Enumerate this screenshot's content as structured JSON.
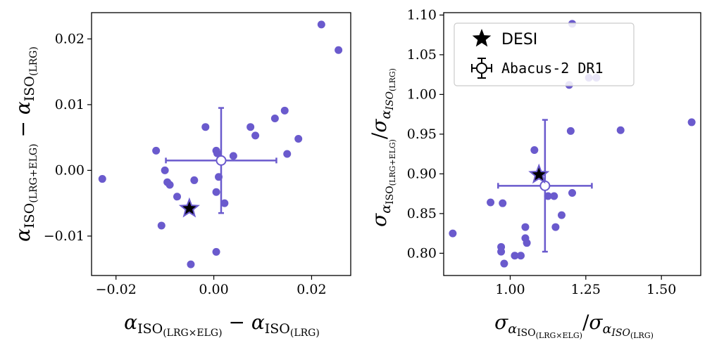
{
  "colors": {
    "points": "#6a5acd",
    "star": "#000000",
    "axis": "#000000",
    "legend_border": "#cccccc"
  },
  "chart_data": [
    {
      "type": "scatter",
      "xlabel": {
        "main": "α",
        "sub": "ISO",
        "sub2": "(LRG×ELG)",
        "minus": " − ",
        "main2": "α",
        "sub_b": "ISO",
        "sub2_b": "(LRG)"
      },
      "ylabel": {
        "main": "α",
        "sub": "ISO",
        "sub2": "(LRG+ELG)",
        "minus": " − ",
        "main2": "α",
        "sub_b": "ISO",
        "sub2_b": "(LRG)"
      },
      "xlim": [
        -0.025,
        0.028
      ],
      "ylim": [
        -0.016,
        0.024
      ],
      "xticks": [
        -0.02,
        0.0,
        0.02
      ],
      "xtick_labels": [
        "−0.02",
        "0.00",
        "0.02"
      ],
      "yticks": [
        -0.01,
        0.0,
        0.01,
        0.02
      ],
      "ytick_labels": [
        "−0.01",
        "0.00",
        "0.01",
        "0.02"
      ],
      "points": [
        {
          "x": 0.022,
          "y": 0.0222
        },
        {
          "x": 0.0255,
          "y": 0.0183
        },
        {
          "x": 0.0145,
          "y": 0.0091
        },
        {
          "x": 0.0125,
          "y": 0.0079
        },
        {
          "x": 0.0075,
          "y": 0.0066
        },
        {
          "x": 0.0085,
          "y": 0.0053
        },
        {
          "x": 0.0173,
          "y": 0.0048
        },
        {
          "x": -0.0017,
          "y": 0.0066
        },
        {
          "x": 0.0005,
          "y": 0.003
        },
        {
          "x": 0.0007,
          "y": 0.0026
        },
        {
          "x": 0.015,
          "y": 0.0025
        },
        {
          "x": 0.004,
          "y": 0.0022
        },
        {
          "x": -0.0118,
          "y": 0.003
        },
        {
          "x": -0.01,
          "y": 0.0
        },
        {
          "x": -0.0095,
          "y": -0.0018
        },
        {
          "x": -0.009,
          "y": -0.0022
        },
        {
          "x": -0.004,
          "y": -0.0015
        },
        {
          "x": 0.001,
          "y": -0.001
        },
        {
          "x": -0.0075,
          "y": -0.004
        },
        {
          "x": 0.0005,
          "y": -0.0033
        },
        {
          "x": 0.0022,
          "y": -0.005
        },
        {
          "x": -0.0107,
          "y": -0.0084
        },
        {
          "x": 0.0005,
          "y": -0.0124
        },
        {
          "x": -0.0047,
          "y": -0.0143
        },
        {
          "x": -0.0228,
          "y": -0.0013
        }
      ],
      "errorbar": {
        "x": 0.0015,
        "y": 0.0015,
        "xerr_low": 0.0113,
        "xerr_high": 0.0113,
        "yerr_low": 0.008,
        "yerr_high": 0.008
      },
      "star": {
        "x": -0.005,
        "y": -0.0058
      }
    },
    {
      "type": "scatter",
      "xlabel": {
        "main": "σ",
        "sub": "α",
        "sub2": "ISO",
        "sub3": "(LRG×ELG)",
        "slash": "/",
        "main2": "σ",
        "sub_b": "α",
        "sub2_b": "ISO",
        "sub3_b": "(LRG)"
      },
      "ylabel": {
        "main": "σ",
        "sub": "α",
        "sub2": "ISO",
        "sub3": "(LRG+ELG)",
        "slash": "/",
        "main2": "σ",
        "sub_b": "α",
        "sub2_b": "ISO",
        "sub3_b": "(LRG)"
      },
      "xlim": [
        0.78,
        1.63
      ],
      "ylim": [
        0.772,
        1.103
      ],
      "xticks": [
        1.0,
        1.25,
        1.5
      ],
      "xtick_labels": [
        "1.00",
        "1.25",
        "1.50"
      ],
      "yticks": [
        0.8,
        0.85,
        0.9,
        0.95,
        1.0,
        1.05,
        1.1
      ],
      "ytick_labels": [
        "0.80",
        "0.85",
        "0.90",
        "0.95",
        "1.00",
        "1.05",
        "1.10"
      ],
      "points": [
        {
          "x": 1.205,
          "y": 1.089
        },
        {
          "x": 1.26,
          "y": 1.021
        },
        {
          "x": 1.285,
          "y": 1.021
        },
        {
          "x": 1.195,
          "y": 1.012
        },
        {
          "x": 1.6,
          "y": 0.965
        },
        {
          "x": 1.365,
          "y": 0.955
        },
        {
          "x": 1.2,
          "y": 0.954
        },
        {
          "x": 1.08,
          "y": 0.93
        },
        {
          "x": 1.205,
          "y": 0.876
        },
        {
          "x": 1.145,
          "y": 0.872
        },
        {
          "x": 1.125,
          "y": 0.872
        },
        {
          "x": 0.935,
          "y": 0.864
        },
        {
          "x": 0.975,
          "y": 0.863
        },
        {
          "x": 1.17,
          "y": 0.848
        },
        {
          "x": 1.15,
          "y": 0.833
        },
        {
          "x": 1.05,
          "y": 0.833
        },
        {
          "x": 0.81,
          "y": 0.825
        },
        {
          "x": 1.05,
          "y": 0.819
        },
        {
          "x": 1.055,
          "y": 0.813
        },
        {
          "x": 0.97,
          "y": 0.808
        },
        {
          "x": 0.97,
          "y": 0.802
        },
        {
          "x": 1.015,
          "y": 0.797
        },
        {
          "x": 1.035,
          "y": 0.797
        },
        {
          "x": 0.98,
          "y": 0.787
        }
      ],
      "errorbar": {
        "x": 1.115,
        "y": 0.885,
        "xerr_low": 0.155,
        "xerr_high": 0.155,
        "yerr_low": 0.083,
        "yerr_high": 0.083
      },
      "star": {
        "x": 1.095,
        "y": 0.899
      },
      "legend": {
        "position": "upper-left",
        "entries": [
          "DESI",
          "Abacus-2 DR1"
        ]
      }
    }
  ]
}
